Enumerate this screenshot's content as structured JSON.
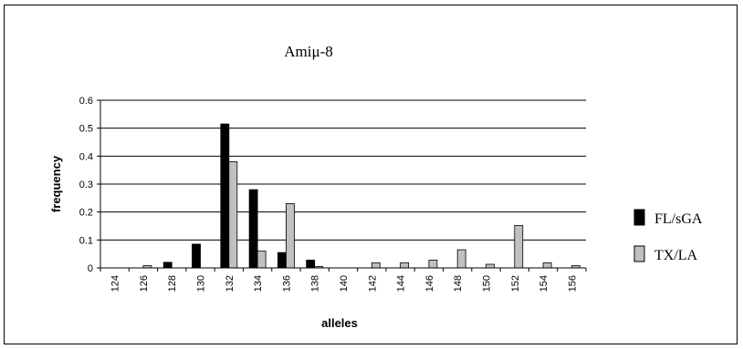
{
  "chart_data": {
    "type": "bar",
    "title": "Amiμ-8",
    "xlabel": "alleles",
    "ylabel": "frequency",
    "ylim": [
      0,
      0.6
    ],
    "yticks": [
      "0",
      "0.1",
      "0.2",
      "0.3",
      "0.4",
      "0.5",
      "0.6"
    ],
    "grid": true,
    "legend_position": "right",
    "categories": [
      "124",
      "126",
      "128",
      "130",
      "132",
      "134",
      "136",
      "138",
      "140",
      "142",
      "144",
      "146",
      "148",
      "150",
      "152",
      "154",
      "156"
    ],
    "series": [
      {
        "name": "FL/sGA",
        "color": "#000000",
        "values": [
          0,
          0,
          0.02,
          0.085,
          0.515,
          0.28,
          0.055,
          0.028,
          0,
          0,
          0,
          0,
          0,
          0,
          0,
          0,
          0
        ]
      },
      {
        "name": "TX/LA",
        "color": "#c0c0c0",
        "values": [
          0,
          0.008,
          0,
          0,
          0.38,
          0.06,
          0.23,
          0.005,
          0,
          0.018,
          0.018,
          0.028,
          0.065,
          0.013,
          0.152,
          0.018,
          0.008
        ]
      }
    ]
  }
}
